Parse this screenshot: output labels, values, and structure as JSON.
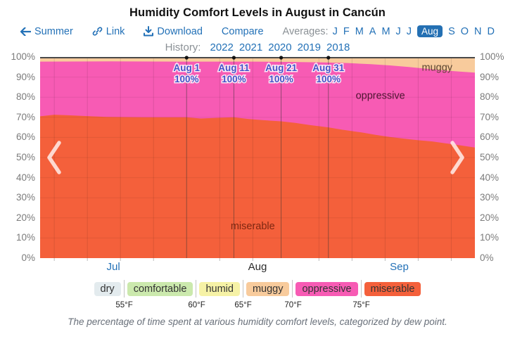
{
  "title": "Humidity Comfort Levels in August in Cancún",
  "toolbar": {
    "back_label": "Summer",
    "link_label": "Link",
    "download_label": "Download",
    "compare_label": "Compare",
    "averages_label": "Averages:",
    "months": [
      "J",
      "F",
      "M",
      "A",
      "M",
      "J",
      "J",
      "Aug",
      "S",
      "O",
      "N",
      "D"
    ],
    "active_month_index": 7,
    "active_month": "Aug"
  },
  "history": {
    "label": "History:",
    "years": [
      "2022",
      "2021",
      "2020",
      "2019",
      "2018"
    ]
  },
  "chart_data": {
    "type": "area",
    "stacked": true,
    "title": "Humidity Comfort Levels in August in Cancún",
    "ylim": [
      0,
      100
    ],
    "yticks": [
      "100%",
      "90%",
      "80%",
      "70%",
      "60%",
      "50%",
      "40%",
      "30%",
      "20%",
      "10%",
      "0%"
    ],
    "x_domain": {
      "start": "Jul 1",
      "end": "Oct 1",
      "days": 92
    },
    "month_labels": [
      {
        "label": "Jul",
        "day": 15.5,
        "current": false
      },
      {
        "label": "Aug",
        "day": 46,
        "current": true
      },
      {
        "label": "Sep",
        "day": 76,
        "current": false
      }
    ],
    "series": [
      {
        "name": "miserable",
        "color": "#f4603b",
        "top_boundary_pct": [
          [
            0,
            70.5
          ],
          [
            3,
            71.3
          ],
          [
            6,
            71
          ],
          [
            10,
            70.6
          ],
          [
            14,
            70.2
          ],
          [
            18,
            70.1
          ],
          [
            22,
            70
          ],
          [
            27,
            70
          ],
          [
            31,
            70
          ],
          [
            34,
            69.4
          ],
          [
            38,
            69.8
          ],
          [
            41,
            70
          ],
          [
            44,
            69.2
          ],
          [
            47,
            68.6
          ],
          [
            51,
            68
          ],
          [
            54,
            67.2
          ],
          [
            57,
            66.2
          ],
          [
            61,
            65
          ],
          [
            64,
            63.8
          ],
          [
            68,
            62.5
          ],
          [
            71,
            61.3
          ],
          [
            74,
            60.2
          ],
          [
            77,
            59.4
          ],
          [
            80,
            58.6
          ],
          [
            83,
            58
          ],
          [
            86,
            57
          ],
          [
            89,
            56
          ],
          [
            92,
            55
          ]
        ]
      },
      {
        "name": "oppressive",
        "color": "#f75bb4",
        "top_boundary_pct": [
          [
            0,
            97.7
          ],
          [
            15,
            97.8
          ],
          [
            30,
            97.7
          ],
          [
            45,
            97.7
          ],
          [
            55,
            97.5
          ],
          [
            60,
            97.3
          ],
          [
            65,
            97
          ],
          [
            70,
            96.4
          ],
          [
            74,
            95.8
          ],
          [
            78,
            95
          ],
          [
            82,
            94.1
          ],
          [
            86,
            93.2
          ],
          [
            89,
            92.7
          ],
          [
            92,
            92.2
          ]
        ]
      },
      {
        "name": "muggy",
        "color": "#f8cb9c",
        "top_boundary_pct": [
          [
            0,
            100
          ],
          [
            92,
            100
          ]
        ]
      }
    ],
    "annotations": [
      {
        "label": "Aug 1",
        "value": "100%",
        "day": 31
      },
      {
        "label": "Aug 11",
        "value": "100%",
        "day": 41
      },
      {
        "label": "Aug 21",
        "value": "100%",
        "day": 51
      },
      {
        "label": "Aug 31",
        "value": "100%",
        "day": 61
      }
    ],
    "area_labels": [
      {
        "text": "muggy",
        "day": 84,
        "pct": 95,
        "color": "#5c4632"
      },
      {
        "text": "oppressive",
        "day": 72,
        "pct": 81,
        "color": "#4d1430"
      },
      {
        "text": "miserable",
        "day": 45,
        "pct": 16,
        "color": "#7e2711"
      }
    ],
    "gridlines": {
      "h_step_pct": 10,
      "v_step_days": 7,
      "v_start_day": 3,
      "annotation_days": [
        31,
        41,
        51,
        61
      ]
    }
  },
  "legend": {
    "items": [
      {
        "label": "dry",
        "color": "#e3ebee"
      },
      {
        "label": "comfortable",
        "color": "#cbe9ad"
      },
      {
        "label": "humid",
        "color": "#f6f2a6"
      },
      {
        "label": "muggy",
        "color": "#f8cb9c"
      },
      {
        "label": "oppressive",
        "color": "#f75bb4"
      },
      {
        "label": "miserable",
        "color": "#f4603b"
      }
    ],
    "boundaries": [
      "55°F",
      "60°F",
      "65°F",
      "70°F",
      "75°F"
    ]
  },
  "caption": "The percentage of time spent at various humidity comfort levels, categorized by dew point.",
  "colors": {
    "link_blue": "#2371b7",
    "active_month_bg": "#2470b3",
    "muted_gray": "#8b9196",
    "axis_gray": "#7b7b7b",
    "annotation_blue": "#4353c9",
    "top_axis_line": "#4a4a4a"
  }
}
